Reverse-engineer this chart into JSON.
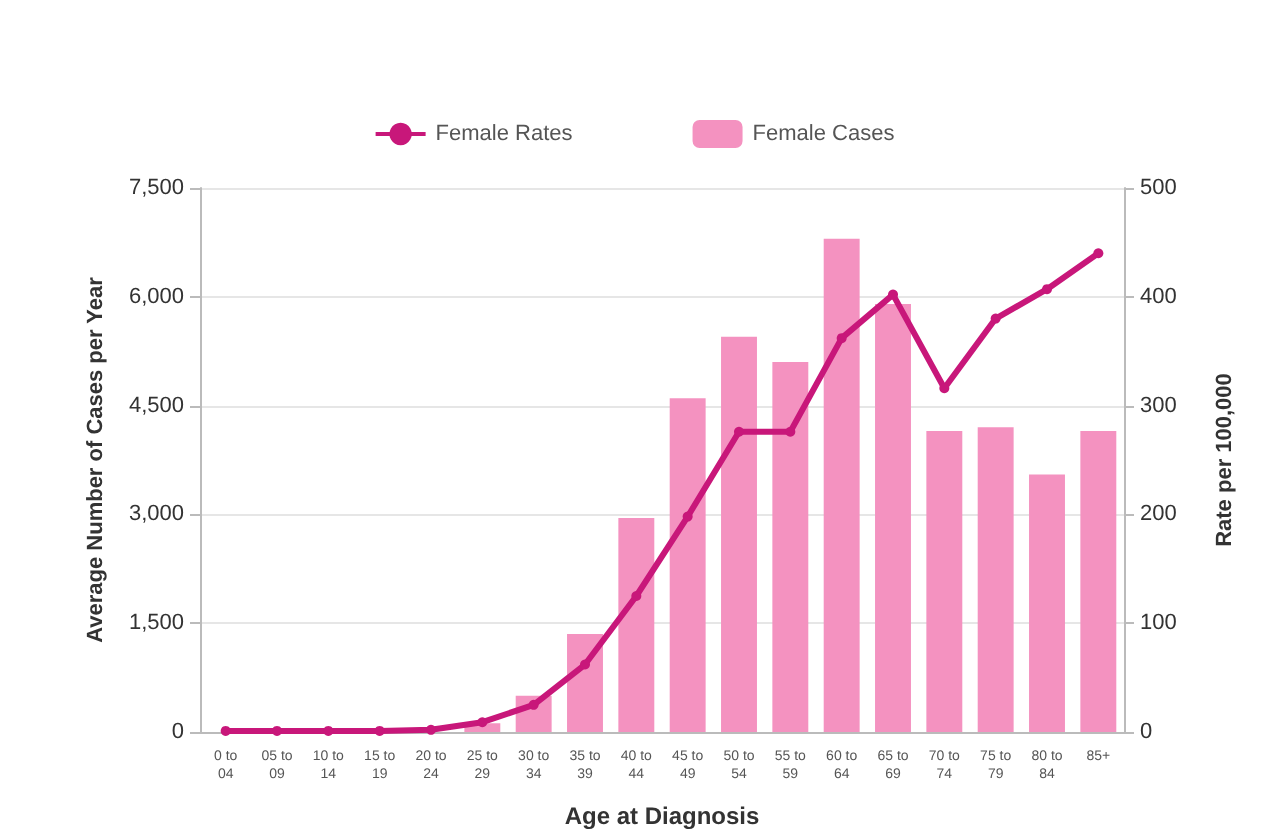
{
  "chart_data": {
    "type": "bar",
    "xlabel": "Age at Diagnosis",
    "ylabel": "Average Number of Cases per Year",
    "y2label": "Rate per 100,000",
    "categories": [
      "0 to 04",
      "05 to 09",
      "10 to 14",
      "15 to 19",
      "20 to 24",
      "25 to 29",
      "30 to 34",
      "35 to 39",
      "40 to 44",
      "45 to 49",
      "50 to 54",
      "55 to 59",
      "60 to 64",
      "65 to 69",
      "70 to 74",
      "75 to 79",
      "80 to 84",
      "85+"
    ],
    "series": [
      {
        "name": "Female Rates",
        "type": "line",
        "axis": "y2",
        "color": "#c8177a",
        "marker": "circle",
        "values": [
          1,
          1,
          1,
          1,
          2,
          9,
          25,
          62,
          125,
          198,
          276,
          276,
          362,
          402,
          316,
          380,
          407,
          440
        ]
      },
      {
        "name": "Female Cases",
        "color": "#f492c0",
        "values": [
          0,
          0,
          0,
          0,
          null,
          120,
          500,
          1350,
          2950,
          4600,
          5450,
          5100,
          6800,
          5900,
          4150,
          4200,
          3550,
          4150
        ]
      }
    ],
    "ylim": [
      0,
      7500
    ],
    "yticks": [
      0,
      {
        "value": 1500,
        "label": "1,500"
      },
      {
        "value": 3000,
        "label": "3,000"
      },
      {
        "value": 4500,
        "label": "4,500"
      },
      {
        "value": 6000,
        "label": "6,000"
      },
      {
        "value": 7500,
        "label": "7,500"
      }
    ],
    "y2lim": [
      0,
      500
    ],
    "y2ticks": [
      0,
      100,
      200,
      300,
      400,
      500
    ],
    "grid": "y",
    "legend": "top"
  }
}
